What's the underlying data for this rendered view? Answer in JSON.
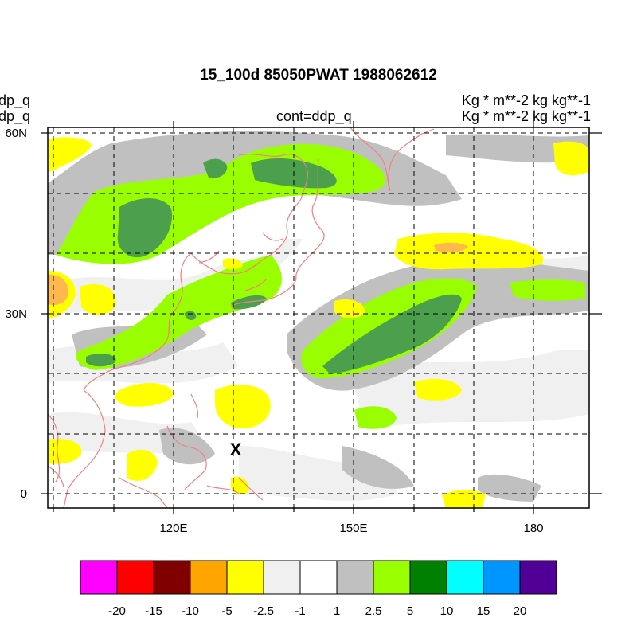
{
  "header": {
    "title": "15_100d 85050PWAT  1988062612",
    "left_line1": "ddp_q",
    "left_line2": "ddp_q",
    "center_line2": "cont=ddp_q",
    "right_line1": "Kg   * m**-2 kg kg**-1",
    "right_line2": "Kg   * m**-2 kg kg**-1"
  },
  "map": {
    "lon_range": [
      100,
      190
    ],
    "lat_range": [
      -2,
      61
    ],
    "x_tick_labels": [
      "120E",
      "150E",
      "180"
    ],
    "y_tick_labels": [
      "60N",
      "30N",
      "0"
    ],
    "marker_label": "X",
    "coastline_color": "#f08080",
    "grid_style": "dashed"
  },
  "colorbar": {
    "colors": [
      "#ff00ff",
      "#ff0000",
      "#800000",
      "#ffa500",
      "#ffff00",
      "#f0f0f0",
      "#ffffff",
      "#c0c0c0",
      "#99ff00",
      "#008000",
      "#00ffff",
      "#0096ff",
      "#500096"
    ],
    "labels": [
      "-20",
      "-15",
      "-10",
      "-5",
      "-2.5",
      "-1",
      "1",
      "2.5",
      "5",
      "10",
      "15",
      "20"
    ]
  }
}
